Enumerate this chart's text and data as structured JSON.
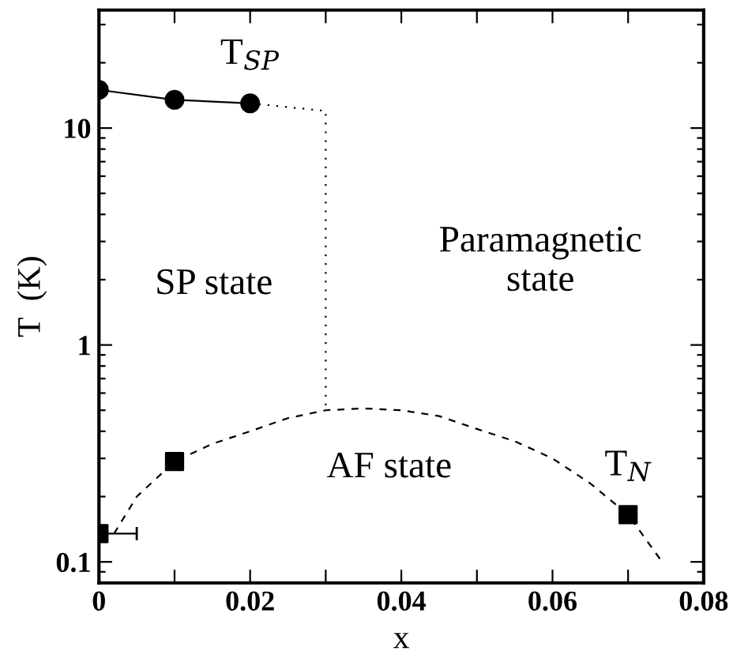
{
  "chart_data": {
    "type": "line",
    "xlabel": "x",
    "ylabel": "T  (K)",
    "log": "y",
    "xlim": [
      0,
      0.08
    ],
    "xticks": [
      0,
      {
        "value": 0.01,
        "label": null
      },
      0.02,
      {
        "value": 0.03,
        "label": null
      },
      0.04,
      {
        "value": 0.05,
        "label": null
      },
      0.06,
      {
        "value": 0.07,
        "label": null
      },
      0.08
    ],
    "ylim": [
      0.08,
      35
    ],
    "yticks": [
      {
        "value": 0.09,
        "label": null
      },
      0.1,
      {
        "value": 0.2,
        "label": null
      },
      {
        "value": 0.3,
        "label": null
      },
      {
        "value": 0.4,
        "label": null
      },
      {
        "value": 0.5,
        "label": null
      },
      {
        "value": 0.6,
        "label": null
      },
      {
        "value": 0.7,
        "label": null
      },
      {
        "value": 0.8,
        "label": null
      },
      {
        "value": 0.9,
        "label": null
      },
      1,
      {
        "value": 2,
        "label": null
      },
      {
        "value": 3,
        "label": null
      },
      {
        "value": 4,
        "label": null
      },
      {
        "value": 5,
        "label": null
      },
      {
        "value": 6,
        "label": null
      },
      {
        "value": 7,
        "label": null
      },
      {
        "value": 8,
        "label": null
      },
      {
        "value": 9,
        "label": null
      },
      10,
      {
        "value": 20,
        "label": null
      },
      {
        "value": 30,
        "label": null
      }
    ],
    "grid": false,
    "legend": false,
    "series": [
      {
        "color": "#000000",
        "marker": "circle",
        "line_style": "solid",
        "x": [
          0,
          0.01,
          0.02
        ],
        "values": [
          15,
          13.5,
          13
        ]
      },
      {
        "color": "#000000",
        "marker": "none",
        "line_style": "dotted",
        "x": [
          0.02,
          0.03,
          0.03
        ],
        "values": [
          13,
          12,
          0.5
        ]
      },
      {
        "type": "scatter",
        "color": "#000000",
        "marker": "square",
        "x": [
          0,
          0.01,
          0.07
        ],
        "values": [
          0.135,
          0.29,
          0.165
        ],
        "xerrors": [
          [
            0,
            0.005
          ],
          null,
          null
        ]
      },
      {
        "color": "#000000",
        "marker": "none",
        "line_style": "dashed",
        "x": [
          0.002,
          0.005,
          0.01,
          0.015,
          0.02,
          0.025,
          0.03,
          0.035,
          0.04,
          0.045,
          0.05,
          0.055,
          0.06,
          0.065,
          0.07,
          0.0745
        ],
        "values": [
          0.135,
          0.2,
          0.29,
          0.35,
          0.4,
          0.46,
          0.5,
          0.51,
          0.5,
          0.47,
          0.41,
          0.36,
          0.3,
          0.23,
          0.165,
          0.1
        ]
      }
    ],
    "annotations": [
      {
        "text": "T$_{SP}$",
        "x": 0.02,
        "y": 13
      },
      "SP state",
      "Paramagnetic\nstate",
      "AF state",
      {
        "text": "T$_{N}$",
        "x": 0.07,
        "y": 0.165
      }
    ]
  }
}
